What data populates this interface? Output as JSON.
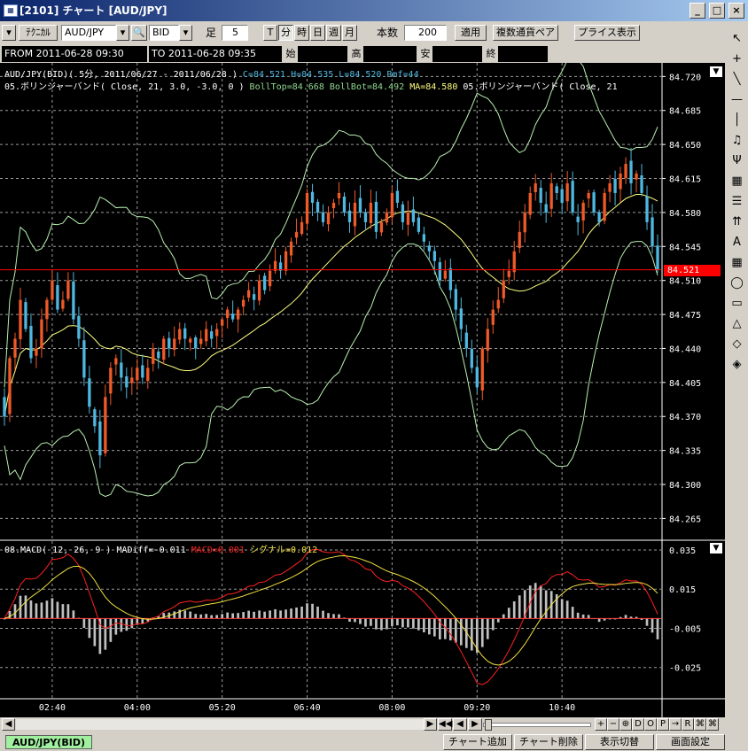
{
  "window": {
    "title": "[2101] チャート [AUD/JPY]",
    "app_icon": "chart-window-icon",
    "buttons": [
      "_",
      "□",
      "×"
    ]
  },
  "toolbar": {
    "technical_label": "ﾃｸﾆｶﾙ",
    "pair_value": "AUD/JPY",
    "side_value": "BID",
    "bar_label": "足",
    "interval_value": "5",
    "interval_units": [
      "T",
      "分",
      "時",
      "日",
      "週",
      "月"
    ],
    "count_label": "本数",
    "count_value": "200",
    "apply_label": "適用",
    "multi_pair_label": "複数通貨ペア",
    "price_display_label": "プライス表示"
  },
  "range": {
    "from_label": "FROM",
    "from_value": "2011-06-28  09:30",
    "to_label": "TO",
    "to_value": "2011-06-28  09:35",
    "open_label": "始",
    "high_label": "高",
    "low_label": "安",
    "close_label": "終"
  },
  "main_legend": {
    "header": "AUD/JPY(BID)( 5分, 2011/06/27 - 2011/06/28 )",
    "ohlc": "C=84.521 H=84.535 L=84.520 Rmf=44",
    "boll_name": "05.ボリンジャーバンド( Close, 21, 3.0, -3.0, 0 )",
    "boll_values_a": "BollTop=84.668 BollBot=84.492",
    "boll_values_b": "MA=84.580",
    "boll_name_2": "05.ボリンジャーバンド( Close, 21"
  },
  "macd_legend": {
    "name": "08.MACD( 12, 26, 9 )",
    "madiff": "MADiff=-0.011",
    "macd": "MACD=0.001",
    "signal": "シグナル=0.012"
  },
  "colors": {
    "up": "#f05a28",
    "down": "#4fb8e0",
    "ma": "#ffff80",
    "band": "#b8f0b0",
    "current": "#ff0000",
    "macd": "#ff2020",
    "signal": "#f0e040",
    "hist": "#c0c0c0"
  },
  "current_price": "84.521",
  "tools": [
    "cursor-icon",
    "crosshair-icon",
    "trendline-icon",
    "hline-icon",
    "vline-icon",
    "alert-bell-icon",
    "pitchfork-icon",
    "fibonacci-icon",
    "quadrant-icon",
    "arrow-up-icon",
    "text-icon",
    "grid-icon",
    "ellipse-icon",
    "rectangle-icon",
    "triangle-icon",
    "eraser-icon",
    "eraser-all-icon"
  ],
  "scroll_controls": [
    "◀◀",
    "◀",
    "▶",
    "+",
    "−",
    "⊕",
    "D",
    "O",
    "P",
    "→",
    "R",
    "⌘",
    "⌘"
  ],
  "status": {
    "tab_label": "AUD/JPY(BID)",
    "add_chart": "チャート追加",
    "delete_chart": "チャート削除",
    "toggle_display": "表示切替",
    "screen_settings": "画面設定"
  },
  "chart_data": [
    {
      "type": "candlestick",
      "title": "AUD/JPY(BID)( 5分, 2011/06/27 - 2011/06/28 )",
      "x_ticks": [
        "02:40",
        "04:00",
        "05:20",
        "06:40",
        "08:00",
        "09:20",
        "10:40"
      ],
      "x_tick_index": [
        9,
        25,
        41,
        57,
        73,
        89,
        105
      ],
      "y_ticks": [
        84.72,
        84.685,
        84.65,
        84.615,
        84.58,
        84.545,
        84.51,
        84.475,
        84.44,
        84.405,
        84.37,
        84.335,
        84.3,
        84.265
      ],
      "ylim": [
        84.2435,
        84.734
      ],
      "grid": true,
      "current_price": 84.521,
      "closes": [
        84.37,
        84.43,
        84.45,
        84.49,
        84.46,
        84.43,
        84.44,
        84.47,
        84.49,
        84.51,
        84.48,
        84.49,
        84.51,
        84.47,
        84.45,
        84.41,
        84.38,
        84.36,
        84.33,
        84.39,
        84.42,
        84.43,
        84.41,
        84.4,
        84.41,
        84.42,
        84.41,
        84.42,
        84.44,
        84.43,
        84.45,
        84.44,
        84.45,
        84.46,
        84.45,
        84.45,
        84.44,
        84.45,
        84.46,
        84.45,
        84.46,
        84.47,
        84.48,
        84.47,
        84.48,
        84.49,
        84.5,
        84.49,
        84.51,
        84.5,
        84.52,
        84.53,
        84.52,
        84.54,
        84.55,
        84.56,
        84.57,
        84.6,
        84.59,
        84.58,
        84.57,
        84.58,
        84.59,
        84.6,
        84.58,
        84.57,
        84.59,
        84.58,
        84.57,
        84.59,
        84.56,
        84.57,
        84.58,
        84.6,
        84.59,
        84.57,
        84.58,
        84.57,
        84.56,
        84.55,
        84.54,
        84.53,
        84.51,
        84.52,
        84.5,
        84.48,
        84.46,
        84.44,
        84.42,
        84.4,
        84.44,
        84.46,
        84.48,
        84.49,
        84.51,
        84.52,
        84.54,
        84.56,
        84.58,
        84.6,
        84.61,
        84.59,
        84.58,
        84.61,
        84.6,
        84.59,
        84.61,
        84.58,
        84.57,
        84.59,
        84.6,
        84.58,
        84.57,
        84.6,
        84.61,
        84.6,
        84.62,
        84.63,
        84.61,
        84.62,
        84.6,
        84.57,
        84.545,
        84.521
      ],
      "series": [
        {
          "name": "BollTop",
          "color": "#b8f0b0"
        },
        {
          "name": "MA",
          "color": "#ffff80"
        },
        {
          "name": "BollBot",
          "color": "#b8f0b0"
        }
      ]
    },
    {
      "type": "line",
      "title": "08.MACD( 12, 26, 9 )",
      "y_ticks": [
        0.035,
        0.015,
        -0.005,
        -0.025
      ],
      "ylim": [
        -0.0405,
        0.0395
      ],
      "series": [
        {
          "name": "MACD",
          "color": "#ff2020"
        },
        {
          "name": "シグナル",
          "color": "#f0e040"
        },
        {
          "name": "MADiff",
          "color": "#c0c0c0"
        }
      ]
    }
  ]
}
